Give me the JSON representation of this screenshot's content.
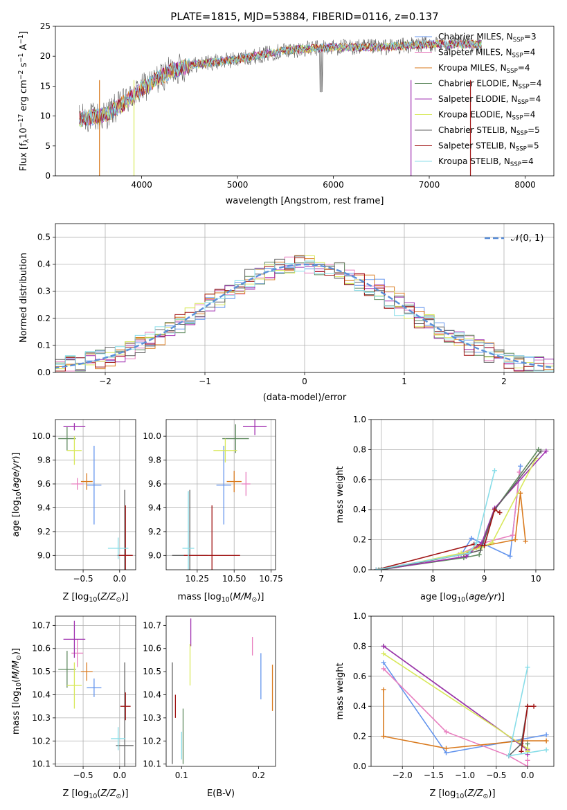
{
  "figure": {
    "title": "PLATE=1815, MJD=53884, FIBERID=0116, z=0.137"
  },
  "legend_labels": [
    {
      "base": "Chabrier MILES, N",
      "sub": "SSP",
      "tail": "=3"
    },
    {
      "base": "Salpeter MILES, N",
      "sub": "SSP",
      "tail": "=4"
    },
    {
      "base": "Kroupa MILES, N",
      "sub": "SSP",
      "tail": "=4"
    },
    {
      "base": "Chabrier ELODIE, N",
      "sub": "SSP",
      "tail": "=4"
    },
    {
      "base": "Salpeter ELODIE, N",
      "sub": "SSP",
      "tail": "=4"
    },
    {
      "base": "Kroupa ELODIE, N",
      "sub": "SSP",
      "tail": "=4"
    },
    {
      "base": "Chabrier STELIB, N",
      "sub": "SSP",
      "tail": "=5"
    },
    {
      "base": "Salpeter STELIB, N",
      "sub": "SSP",
      "tail": "=5"
    },
    {
      "base": "Kroupa STELIB, N",
      "sub": "SSP",
      "tail": "=4"
    }
  ],
  "colors": [
    "#6495ed",
    "#e87ebf",
    "#d97a1e",
    "#5f8a5f",
    "#a030b0",
    "#d8e85a",
    "#606060",
    "#a01515",
    "#88dde8"
  ],
  "chart_data": [
    {
      "id": "spectrum",
      "type": "line",
      "title": "PLATE=1815, MJD=53884, FIBERID=0116, z=0.137",
      "xlabel": "wavelength [Angstrom, rest frame]",
      "ylabel": "Flux [f_λ 10^-17 erg cm^-2 s^-1 A^-1]",
      "xlim": [
        3100,
        8300
      ],
      "ylim": [
        0,
        25
      ],
      "xticks": [
        4000,
        5000,
        6000,
        7000,
        8000
      ],
      "yticks": [
        0,
        5,
        10,
        15,
        20,
        25
      ],
      "grid": false,
      "legend": "top-right",
      "x_range": [
        3350,
        7550
      ],
      "continuum": [
        [
          3350,
          9.5
        ],
        [
          3600,
          10
        ],
        [
          3800,
          12
        ],
        [
          4000,
          14.5
        ],
        [
          4100,
          15.5
        ],
        [
          4300,
          17.5
        ],
        [
          4500,
          18.5
        ],
        [
          5000,
          19.5
        ],
        [
          5500,
          21
        ],
        [
          6000,
          21.5
        ],
        [
          6500,
          21.5
        ],
        [
          7000,
          22
        ],
        [
          7500,
          22
        ]
      ]
    },
    {
      "id": "residuals",
      "type": "histogram",
      "xlabel": "(data-model)/error",
      "ylabel": "Normed distribution",
      "xlim": [
        -2.5,
        2.5
      ],
      "ylim": [
        0,
        0.55
      ],
      "xticks": [
        -2,
        -1,
        0,
        1,
        2
      ],
      "yticks": [
        0.0,
        0.1,
        0.2,
        0.3,
        0.4,
        0.5
      ],
      "grid": true,
      "legend": "top-right",
      "legend_label": "𝒩(0, 1)",
      "bin_width": 0.1,
      "reference": "normal(0,1)"
    },
    {
      "id": "age_vs_Z",
      "type": "errorbar",
      "xlabel": "Z [log10(Z/Z☉)]",
      "ylabel": "age [log10(age/yr)]",
      "xlim": [
        -0.88,
        0.22
      ],
      "ylim": [
        8.88,
        10.14
      ],
      "xticks": [
        -0.5,
        0.0
      ],
      "yticks": [
        9.0,
        9.2,
        9.4,
        9.6,
        9.8,
        10.0
      ],
      "grid": true,
      "points": [
        {
          "x": -0.35,
          "y": 9.59,
          "xerr": 0.1,
          "yerr": 0.33
        },
        {
          "x": -0.58,
          "y": 9.6,
          "xerr": 0.08,
          "yerr": 0.05
        },
        {
          "x": -0.45,
          "y": 9.62,
          "xerr": 0.08,
          "yerr": 0.07
        },
        {
          "x": -0.72,
          "y": 9.98,
          "xerr": 0.12,
          "yerr": 0.1
        },
        {
          "x": -0.62,
          "y": 10.08,
          "xerr": 0.15,
          "yerr": 0.03
        },
        {
          "x": -0.62,
          "y": 9.88,
          "xerr": 0.1,
          "yerr": 0.12
        },
        {
          "x": 0.07,
          "y": 9.0,
          "xerr": 0.1,
          "yerr": 0.55
        },
        {
          "x": 0.08,
          "y": 9.0,
          "xerr": 0.1,
          "yerr": 0.42
        },
        {
          "x": -0.02,
          "y": 9.06,
          "xerr": 0.14,
          "yerr": 0.09
        }
      ]
    },
    {
      "id": "age_vs_mass",
      "type": "errorbar",
      "xlabel": "mass [log10(M/M☉)]",
      "ylabel": "",
      "xlim": [
        10.04,
        10.78
      ],
      "ylim": [
        8.88,
        10.14
      ],
      "xticks": [
        10.25,
        10.5,
        10.75
      ],
      "yticks": [
        9.0,
        9.2,
        9.4,
        9.6,
        9.8,
        10.0
      ],
      "grid": true,
      "points": [
        {
          "x": 10.43,
          "y": 9.59,
          "xerr": 0.05,
          "yerr": 0.33
        },
        {
          "x": 10.58,
          "y": 9.6,
          "xerr": 0.03,
          "yerr": 0.1
        },
        {
          "x": 10.5,
          "y": 9.62,
          "xerr": 0.05,
          "yerr": 0.09
        },
        {
          "x": 10.51,
          "y": 9.98,
          "xerr": 0.09,
          "yerr": 0.12
        },
        {
          "x": 10.64,
          "y": 10.08,
          "xerr": 0.08,
          "yerr": 0.07
        },
        {
          "x": 10.44,
          "y": 9.88,
          "xerr": 0.08,
          "yerr": 0.1
        },
        {
          "x": 10.2,
          "y": 9.0,
          "xerr": 0.12,
          "yerr": 0.55
        },
        {
          "x": 10.35,
          "y": 9.0,
          "xerr": 0.19,
          "yerr": 0.42
        },
        {
          "x": 10.19,
          "y": 9.06,
          "xerr": 0.04,
          "yerr": 0.48
        }
      ]
    },
    {
      "id": "weight_vs_age",
      "type": "line",
      "xlabel": "age [log10(age/yr)]",
      "ylabel": "mass weight",
      "xlim": [
        6.8,
        10.35
      ],
      "ylim": [
        0.0,
        1.0
      ],
      "xticks": [
        7,
        8,
        9,
        10
      ],
      "yticks": [
        0.0,
        0.2,
        0.4,
        0.6,
        0.8,
        1.0
      ],
      "grid": true,
      "series": [
        {
          "values": [
            [
              6.9,
              0.0
            ],
            [
              8.55,
              0.1
            ],
            [
              8.75,
              0.21
            ],
            [
              9.5,
              0.09
            ],
            [
              9.7,
              0.69
            ]
          ]
        },
        {
          "values": [
            [
              6.9,
              0.0
            ],
            [
              8.5,
              0.1
            ],
            [
              9.0,
              0.18
            ],
            [
              9.55,
              0.23
            ],
            [
              9.68,
              0.65
            ]
          ]
        },
        {
          "values": [
            [
              8.6,
              0.1
            ],
            [
              8.85,
              0.15
            ],
            [
              9.6,
              0.2
            ],
            [
              9.7,
              0.51
            ],
            [
              9.8,
              0.19
            ]
          ]
        },
        {
          "values": [
            [
              6.95,
              0.0
            ],
            [
              8.6,
              0.08
            ],
            [
              8.9,
              0.1
            ],
            [
              9.2,
              0.4
            ],
            [
              10.05,
              0.8
            ]
          ]
        },
        {
          "values": [
            [
              7.0,
              0.0
            ],
            [
              8.65,
              0.09
            ],
            [
              8.95,
              0.18
            ],
            [
              9.2,
              0.41
            ],
            [
              10.2,
              0.79
            ]
          ]
        },
        {
          "values": [
            [
              7.0,
              0.0
            ],
            [
              8.55,
              0.11
            ],
            [
              8.95,
              0.15
            ],
            [
              9.15,
              0.18
            ],
            [
              10.0,
              0.74
            ]
          ]
        },
        {
          "values": [
            [
              7.0,
              0.0
            ],
            [
              8.7,
              0.11
            ],
            [
              8.92,
              0.13
            ],
            [
              9.2,
              0.4
            ],
            [
              10.1,
              0.79
            ]
          ]
        },
        {
          "values": [
            [
              6.9,
              0.0
            ],
            [
              8.8,
              0.17
            ],
            [
              9.0,
              0.16
            ],
            [
              9.2,
              0.4
            ],
            [
              9.3,
              0.38
            ]
          ]
        },
        {
          "values": [
            [
              6.9,
              0.0
            ],
            [
              8.7,
              0.11
            ],
            [
              8.85,
              0.18
            ],
            [
              9.2,
              0.66
            ]
          ]
        }
      ]
    },
    {
      "id": "mass_vs_Z",
      "type": "errorbar",
      "xlabel": "Z [log10(Z/Z☉)]",
      "ylabel": "mass [log10(M/M☉)]",
      "xlim": [
        -0.88,
        0.22
      ],
      "ylim": [
        10.09,
        10.74
      ],
      "xticks": [
        -0.5,
        0.0
      ],
      "yticks": [
        10.1,
        10.2,
        10.3,
        10.4,
        10.5,
        10.6,
        10.7
      ],
      "grid": true,
      "points": [
        {
          "x": -0.35,
          "y": 10.43,
          "xerr": 0.1,
          "yerr": 0.04
        },
        {
          "x": -0.58,
          "y": 10.58,
          "xerr": 0.08,
          "yerr": 0.06
        },
        {
          "x": -0.45,
          "y": 10.5,
          "xerr": 0.08,
          "yerr": 0.04
        },
        {
          "x": -0.72,
          "y": 10.51,
          "xerr": 0.12,
          "yerr": 0.08
        },
        {
          "x": -0.62,
          "y": 10.64,
          "xerr": 0.15,
          "yerr": 0.08
        },
        {
          "x": -0.62,
          "y": 10.44,
          "xerr": 0.1,
          "yerr": 0.1
        },
        {
          "x": 0.07,
          "y": 10.18,
          "xerr": 0.12,
          "yerr": 0.36
        },
        {
          "x": 0.08,
          "y": 10.35,
          "xerr": 0.07,
          "yerr": 0.06
        },
        {
          "x": -0.02,
          "y": 10.21,
          "xerr": 0.1,
          "yerr": 0.05
        }
      ]
    },
    {
      "id": "mass_vs_EBV",
      "type": "errorbar",
      "xlabel": "E(B-V)",
      "ylabel": "",
      "xlim": [
        0.08,
        0.222
      ],
      "ylim": [
        10.09,
        10.74
      ],
      "xticks": [
        0.1,
        0.2
      ],
      "yticks": [
        10.1,
        10.2,
        10.3,
        10.4,
        10.5,
        10.6,
        10.7
      ],
      "grid": false,
      "points": [
        {
          "x": 0.203,
          "y": 10.48,
          "xerr": 0,
          "yerr": 0.1
        },
        {
          "x": 0.192,
          "y": 10.61,
          "xerr": 0,
          "yerr": 0.04
        },
        {
          "x": 0.218,
          "y": 10.43,
          "xerr": 0,
          "yerr": 0.1
        },
        {
          "x": 0.102,
          "y": 10.22,
          "xerr": 0,
          "yerr": 0.12
        },
        {
          "x": 0.112,
          "y": 10.67,
          "xerr": 0,
          "yerr": 0.06
        },
        {
          "x": 0.111,
          "y": 10.53,
          "xerr": 0,
          "yerr": 0.09
        },
        {
          "x": 0.088,
          "y": 10.32,
          "xerr": 0,
          "yerr": 0.22
        },
        {
          "x": 0.092,
          "y": 10.35,
          "xerr": 0,
          "yerr": 0.05
        },
        {
          "x": 0.1,
          "y": 10.18,
          "xerr": 0,
          "yerr": 0.06
        }
      ]
    },
    {
      "id": "weight_vs_Z",
      "type": "line",
      "xlabel": "Z [log10(Z/Z☉)]",
      "ylabel": "mass weight",
      "xlim": [
        -2.5,
        0.42
      ],
      "ylim": [
        0.0,
        1.0
      ],
      "xticks": [
        -2.0,
        -1.5,
        -1.0,
        -0.5,
        0.0
      ],
      "yticks": [
        0.0,
        0.2,
        0.4,
        0.6,
        0.8,
        1.0
      ],
      "grid": true,
      "series": [
        {
          "values": [
            [
              -2.3,
              0.69
            ],
            [
              -1.3,
              0.09
            ],
            [
              0.3,
              0.21
            ]
          ]
        },
        {
          "values": [
            [
              -2.3,
              0.65
            ],
            [
              -1.3,
              0.23
            ],
            [
              -0.3,
              0.07
            ],
            [
              0.0,
              0.0
            ],
            [
              0.0,
              0.04
            ]
          ]
        },
        {
          "values": [
            [
              -2.3,
              0.51
            ],
            [
              -2.3,
              0.2
            ],
            [
              -1.3,
              0.12
            ],
            [
              -0.1,
              0.17
            ],
            [
              0.3,
              0.17
            ]
          ]
        },
        {
          "values": [
            [
              -2.3,
              0.8
            ],
            [
              0.0,
              0.11
            ],
            [
              0.0,
              0.15
            ]
          ]
        },
        {
          "values": [
            [
              -2.3,
              0.8
            ],
            [
              0.0,
              0.11
            ],
            [
              0.0,
              0.08
            ]
          ]
        },
        {
          "values": [
            [
              -2.3,
              0.75
            ],
            [
              0.0,
              0.12
            ],
            [
              0.0,
              0.1
            ]
          ]
        },
        {
          "values": [
            [
              -0.3,
              0.07
            ],
            [
              -0.1,
              0.15
            ],
            [
              0.0,
              0.4
            ]
          ]
        },
        {
          "values": [
            [
              -0.1,
              0.1
            ],
            [
              0.0,
              0.4
            ],
            [
              0.1,
              0.4
            ]
          ]
        },
        {
          "values": [
            [
              0.0,
              0.66
            ],
            [
              -0.3,
              0.07
            ],
            [
              0.3,
              0.11
            ]
          ]
        }
      ]
    }
  ]
}
